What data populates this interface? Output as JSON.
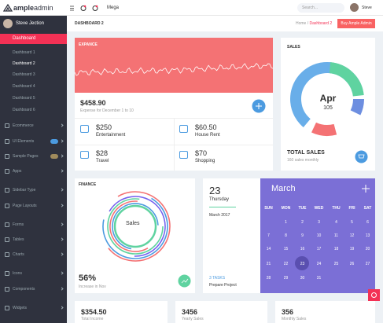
{
  "logo": {
    "brand": "ample",
    "suffix": "admin"
  },
  "topbar": {
    "menu": "Mega",
    "search": "Search...",
    "user": "Steve"
  },
  "sidebar": {
    "user": "Steve Jection",
    "active": "Dashboard",
    "submenu": [
      "Dashboard 1",
      "Dashboard 2",
      "Dashboard 3",
      "Dashboard 4",
      "Dashboard 5",
      "Dashboard 6"
    ],
    "items": [
      "Ecommerce",
      "UI Elements",
      "Sample Pages",
      "Apps",
      "Sidebar Type",
      "Page Layouts",
      "Forms",
      "Tables",
      "Charts",
      "Icons",
      "Components",
      "Widgets"
    ]
  },
  "breadcrumb": {
    "title": "DASHBOARD 2",
    "home": "Home",
    "separator": "/",
    "current": "Dashboard 2",
    "button": "Buy Ample Admin"
  },
  "expense": {
    "title": "EXPANCE",
    "amount": "$458.90",
    "note": "Expense for December 1 to 10",
    "items": [
      {
        "amount": "$250",
        "label": "Entertainment"
      },
      {
        "amount": "$60.50",
        "label": "House Rent"
      },
      {
        "amount": "$28",
        "label": "Travel"
      },
      {
        "amount": "$70",
        "label": "Shopping"
      }
    ]
  },
  "sales": {
    "title": "SALES",
    "month": "Apr",
    "count": "105",
    "total_label": "TOTAL SALES",
    "note": "160 sales monthly"
  },
  "finance": {
    "title": "FINANCE",
    "center": "Sales",
    "percent": "56%",
    "note": "Increase in Nov"
  },
  "date": {
    "day": "23",
    "weekday": "Thursday",
    "month": "March 2017",
    "tasks": "3 TASKS",
    "task": "Prepare Project"
  },
  "calendar": {
    "month": "March",
    "weekdays": [
      "SUN",
      "MON",
      "TUE",
      "WED",
      "THU",
      "FRI",
      "SAT"
    ],
    "days": [
      1,
      2,
      3,
      4,
      5,
      6,
      7,
      8,
      9,
      10,
      11,
      12,
      13,
      14,
      15,
      16,
      17,
      18,
      19,
      20,
      21,
      22,
      23,
      24,
      25,
      26,
      27,
      28,
      29,
      30,
      31
    ],
    "today": 23
  },
  "stats": [
    {
      "value": "$354.50",
      "label": "Total Income"
    },
    {
      "value": "3456",
      "label": "Yearly Sales"
    },
    {
      "value": "356",
      "label": "Monthly Sales"
    }
  ]
}
